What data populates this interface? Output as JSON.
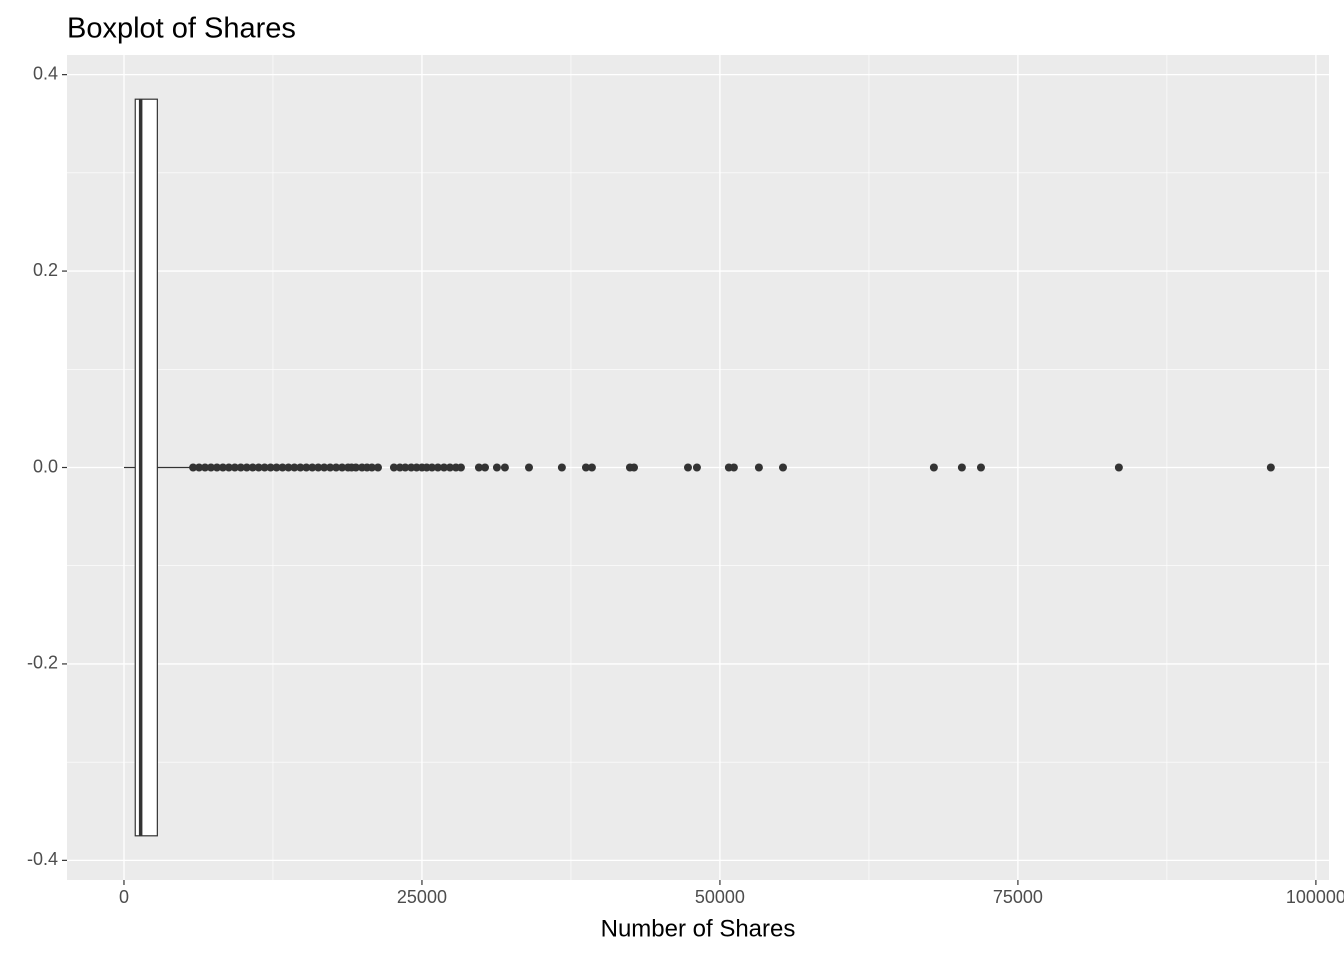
{
  "chart_data": {
    "type": "boxplot",
    "title": "Boxplot of Shares",
    "x_label": "Number of Shares",
    "orientation": "horizontal",
    "boxes": [
      {
        "min": 1,
        "q1": 946,
        "median": 1400,
        "q3": 2800,
        "max": 5500,
        "outliers": [
          5800,
          6300,
          6800,
          7300,
          7800,
          8300,
          8800,
          9300,
          9800,
          10300,
          10800,
          11300,
          11800,
          12300,
          12800,
          13300,
          13800,
          14300,
          14800,
          15300,
          15800,
          16300,
          16800,
          17300,
          17800,
          18300,
          18800,
          19100,
          19460,
          19970,
          20390,
          20800,
          21310,
          22650,
          23150,
          23600,
          24100,
          24550,
          25000,
          25400,
          25840,
          26340,
          26850,
          27350,
          27850,
          28270,
          29780,
          30290,
          31290,
          31960,
          33980,
          36740,
          38760,
          39260,
          42450,
          42790,
          47320,
          48070,
          50750,
          51170,
          53270,
          55290,
          67950,
          70300,
          71900,
          83470,
          96220
        ]
      }
    ],
    "color": "#333333",
    "fill": "#ffffff",
    "xlim": [
      -4780,
      101100
    ],
    "xticks": [
      0,
      25000,
      50000,
      75000,
      100000
    ],
    "ylim": [
      -0.42,
      0.42
    ],
    "yticks": [
      -0.4,
      -0.2,
      {
        "value": 0,
        "label": "0.0"
      },
      0.2,
      0.4
    ],
    "grid": true
  }
}
